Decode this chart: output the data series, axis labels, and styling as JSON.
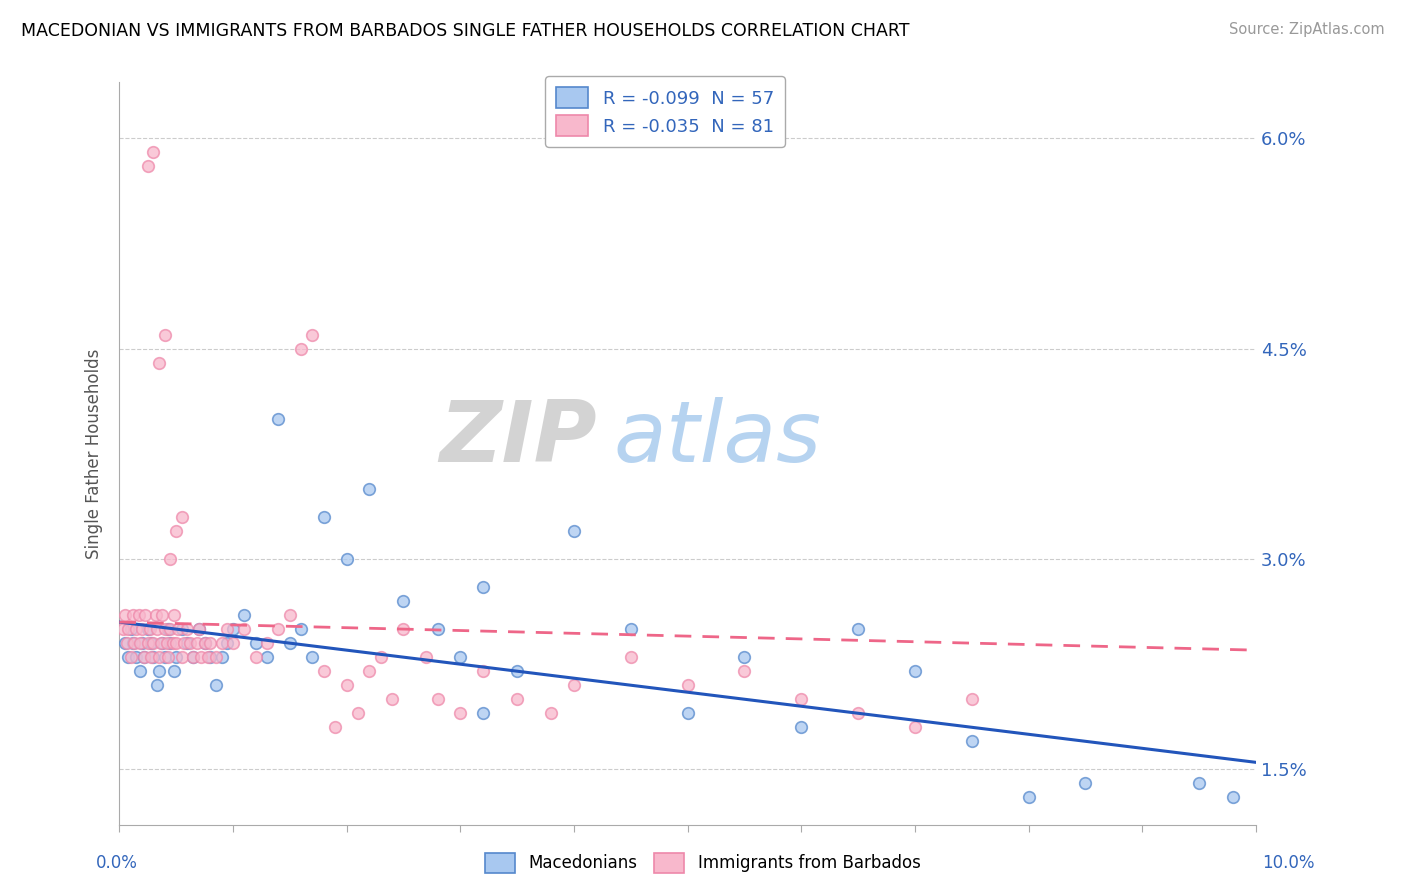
{
  "title": "MACEDONIAN VS IMMIGRANTS FROM BARBADOS SINGLE FATHER HOUSEHOLDS CORRELATION CHART",
  "source": "Source: ZipAtlas.com",
  "ylabel": "Single Father Households",
  "xmin": 0.0,
  "xmax": 10.0,
  "ymin": 1.1,
  "ymax": 6.4,
  "yticks": [
    1.5,
    3.0,
    4.5,
    6.0
  ],
  "legend_r_blue": "R = -0.099",
  "legend_n_blue": "N = 57",
  "legend_r_pink": "R = -0.035",
  "legend_n_pink": "N = 81",
  "blue_face": "#A8C8F0",
  "blue_edge": "#5588CC",
  "pink_face": "#F8B8CC",
  "pink_edge": "#EE88AA",
  "trend_blue": "#2255BB",
  "trend_pink": "#EE6688",
  "figsize": [
    14.06,
    8.92
  ],
  "dpi": 100,
  "blue_x": [
    0.05,
    0.08,
    0.1,
    0.12,
    0.15,
    0.18,
    0.2,
    0.22,
    0.25,
    0.28,
    0.3,
    0.33,
    0.35,
    0.38,
    0.4,
    0.43,
    0.45,
    0.48,
    0.5,
    0.55,
    0.6,
    0.65,
    0.7,
    0.75,
    0.8,
    0.85,
    0.9,
    0.95,
    1.0,
    1.1,
    1.2,
    1.3,
    1.4,
    1.5,
    1.6,
    1.7,
    1.8,
    2.0,
    2.2,
    2.5,
    2.8,
    3.0,
    3.2,
    3.5,
    4.0,
    4.5,
    5.0,
    5.5,
    6.0,
    6.5,
    7.0,
    7.5,
    8.0,
    8.5,
    9.5,
    9.8,
    3.2
  ],
  "blue_y": [
    2.4,
    2.3,
    2.5,
    2.4,
    2.3,
    2.2,
    2.4,
    2.3,
    2.5,
    2.4,
    2.3,
    2.1,
    2.2,
    2.4,
    2.3,
    2.5,
    2.4,
    2.2,
    2.3,
    2.5,
    2.4,
    2.3,
    2.5,
    2.4,
    2.3,
    2.1,
    2.3,
    2.4,
    2.5,
    2.6,
    2.4,
    2.3,
    4.0,
    2.4,
    2.5,
    2.3,
    3.3,
    3.0,
    3.5,
    2.7,
    2.5,
    2.3,
    1.9,
    2.2,
    3.2,
    2.5,
    1.9,
    2.3,
    1.8,
    2.5,
    2.2,
    1.7,
    1.3,
    1.4,
    1.4,
    1.3,
    2.8
  ],
  "pink_x": [
    0.03,
    0.05,
    0.07,
    0.08,
    0.1,
    0.12,
    0.13,
    0.15,
    0.17,
    0.18,
    0.2,
    0.22,
    0.23,
    0.25,
    0.27,
    0.28,
    0.3,
    0.32,
    0.33,
    0.35,
    0.37,
    0.38,
    0.4,
    0.42,
    0.43,
    0.45,
    0.47,
    0.48,
    0.5,
    0.52,
    0.55,
    0.57,
    0.6,
    0.62,
    0.65,
    0.68,
    0.7,
    0.72,
    0.75,
    0.78,
    0.8,
    0.85,
    0.9,
    0.95,
    1.0,
    1.1,
    1.2,
    1.3,
    1.4,
    1.5,
    1.6,
    1.7,
    1.8,
    1.9,
    2.0,
    2.1,
    2.2,
    2.3,
    2.4,
    2.5,
    2.7,
    2.8,
    3.0,
    3.2,
    3.5,
    3.8,
    4.0,
    4.5,
    5.0,
    5.5,
    6.0,
    6.5,
    7.0,
    7.5,
    0.25,
    0.3,
    0.35,
    0.4,
    0.45,
    0.5,
    0.55
  ],
  "pink_y": [
    2.5,
    2.6,
    2.4,
    2.5,
    2.3,
    2.6,
    2.4,
    2.5,
    2.6,
    2.4,
    2.5,
    2.3,
    2.6,
    2.4,
    2.5,
    2.3,
    2.4,
    2.6,
    2.5,
    2.3,
    2.4,
    2.6,
    2.5,
    2.4,
    2.3,
    2.5,
    2.4,
    2.6,
    2.4,
    2.5,
    2.3,
    2.4,
    2.5,
    2.4,
    2.3,
    2.4,
    2.5,
    2.3,
    2.4,
    2.3,
    2.4,
    2.3,
    2.4,
    2.5,
    2.4,
    2.5,
    2.3,
    2.4,
    2.5,
    2.6,
    4.5,
    4.6,
    2.2,
    1.8,
    2.1,
    1.9,
    2.2,
    2.3,
    2.0,
    2.5,
    2.3,
    2.0,
    1.9,
    2.2,
    2.0,
    1.9,
    2.1,
    2.3,
    2.1,
    2.2,
    2.0,
    1.9,
    1.8,
    2.0,
    5.8,
    5.9,
    4.4,
    4.6,
    3.0,
    3.2,
    3.3
  ]
}
